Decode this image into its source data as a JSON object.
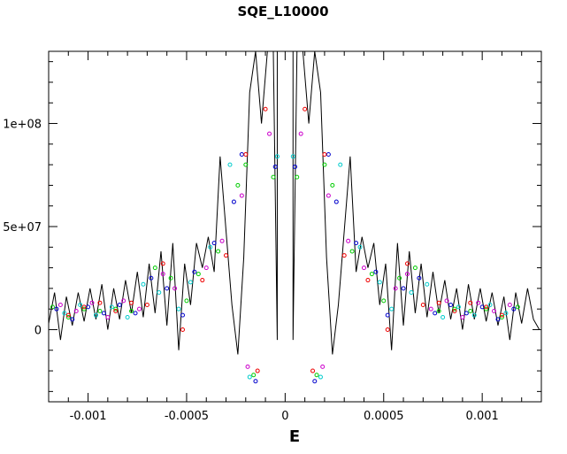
{
  "chart_data": {
    "type": "scatter",
    "title": "SQE_L10000",
    "xlabel": "E",
    "ylabel": "",
    "xlim": [
      -0.0012,
      0.0013
    ],
    "ylim": [
      -35000000,
      135000000
    ],
    "x_ticks": [
      {
        "value": -0.001,
        "label": "-0.001"
      },
      {
        "value": -0.0005,
        "label": "-0.0005"
      },
      {
        "value": 0,
        "label": "0"
      },
      {
        "value": 0.0005,
        "label": "0.0005"
      },
      {
        "value": 0.001,
        "label": "0.001"
      }
    ],
    "y_ticks": [
      {
        "value": 0,
        "label": "0"
      },
      {
        "value": 50000000,
        "label": "5e+07"
      },
      {
        "value": 100000000,
        "label": "1e+08"
      }
    ],
    "line_series": {
      "color": "#000000",
      "x": [
        -0.0012,
        -0.00117,
        -0.00114,
        -0.00111,
        -0.00108,
        -0.00105,
        -0.00102,
        -0.00099,
        -0.00096,
        -0.00093,
        -0.0009,
        -0.00087,
        -0.00084,
        -0.00081,
        -0.00078,
        -0.00075,
        -0.00072,
        -0.00069,
        -0.00066,
        -0.00063,
        -0.0006,
        -0.00057,
        -0.00054,
        -0.00051,
        -0.00048,
        -0.00045,
        -0.00042,
        -0.00039,
        -0.00036,
        -0.00033,
        -0.0003,
        -0.00027,
        -0.00024,
        -0.00021,
        -0.00018,
        -0.00015,
        -0.00012,
        -9e-05,
        -6e-05,
        -4e-05,
        -4e-05,
        -2e-05,
        2e-05,
        4e-05,
        4e-05,
        6e-05,
        9e-05,
        0.00012,
        0.00015,
        0.00018,
        0.00021,
        0.00024,
        0.00027,
        0.0003,
        0.00033,
        0.00036,
        0.00039,
        0.00042,
        0.00045,
        0.00048,
        0.00051,
        0.00054,
        0.00057,
        0.0006,
        0.00063,
        0.00066,
        0.00069,
        0.00072,
        0.00075,
        0.00078,
        0.00081,
        0.00084,
        0.00087,
        0.0009,
        0.00093,
        0.00096,
        0.00099,
        0.00102,
        0.00105,
        0.00108,
        0.00111,
        0.00114,
        0.00117,
        0.0012,
        0.00123,
        0.00126,
        0.00129
      ],
      "y": [
        3000000,
        18000000,
        -5000000,
        16000000,
        2000000,
        18000000,
        4000000,
        20000000,
        5000000,
        22000000,
        0,
        20000000,
        5000000,
        24000000,
        8000000,
        28000000,
        6000000,
        32000000,
        8000000,
        38000000,
        2000000,
        42000000,
        -10000000,
        32000000,
        12000000,
        42000000,
        30000000,
        45000000,
        28000000,
        84000000,
        48000000,
        12000000,
        -12000000,
        35000000,
        115000000,
        135000000,
        100000000,
        135000000,
        135000000,
        -5000000,
        135000000,
        135000000,
        135000000,
        135000000,
        -5000000,
        135000000,
        135000000,
        100000000,
        135000000,
        115000000,
        35000000,
        -12000000,
        12000000,
        48000000,
        84000000,
        28000000,
        45000000,
        30000000,
        42000000,
        12000000,
        32000000,
        -10000000,
        42000000,
        2000000,
        38000000,
        8000000,
        32000000,
        6000000,
        28000000,
        8000000,
        24000000,
        5000000,
        20000000,
        0,
        22000000,
        5000000,
        20000000,
        4000000,
        18000000,
        2000000,
        16000000,
        -5000000,
        18000000,
        3000000,
        20000000,
        5000000,
        0
      ]
    },
    "point_series": [
      {
        "color": "#0000cc",
        "points": [
          [
            -0.00116,
            10000000
          ],
          [
            -0.00108,
            5000000
          ],
          [
            -0.001,
            11000000
          ],
          [
            -0.00092,
            8000000
          ],
          [
            -0.00084,
            12000000
          ],
          [
            -0.00076,
            8000000
          ],
          [
            -0.00068,
            25000000
          ],
          [
            -0.0006,
            20000000
          ],
          [
            -0.00052,
            7000000
          ],
          [
            -0.00046,
            28000000
          ],
          [
            -0.00036,
            42000000
          ],
          [
            -0.00026,
            62000000
          ],
          [
            -0.00022,
            85000000
          ],
          [
            -0.00015,
            -25000000
          ],
          [
            -5e-05,
            79000000
          ],
          [
            5e-05,
            79000000
          ],
          [
            0.00015,
            -25000000
          ],
          [
            0.00022,
            85000000
          ],
          [
            0.00026,
            62000000
          ],
          [
            0.00036,
            42000000
          ],
          [
            0.00046,
            28000000
          ],
          [
            0.00052,
            7000000
          ],
          [
            0.0006,
            20000000
          ],
          [
            0.00068,
            25000000
          ],
          [
            0.00076,
            8000000
          ],
          [
            0.00084,
            12000000
          ],
          [
            0.00092,
            8000000
          ],
          [
            0.001,
            11000000
          ],
          [
            0.00108,
            5000000
          ],
          [
            0.00116,
            10000000
          ]
        ]
      },
      {
        "color": "#00cc00",
        "points": [
          [
            -0.00118,
            11000000
          ],
          [
            -0.0011,
            6000000
          ],
          [
            -0.00102,
            10000000
          ],
          [
            -0.00094,
            9000000
          ],
          [
            -0.00086,
            10000000
          ],
          [
            -0.00078,
            9000000
          ],
          [
            -0.00066,
            30000000
          ],
          [
            -0.00058,
            25000000
          ],
          [
            -0.0005,
            14000000
          ],
          [
            -0.00044,
            27000000
          ],
          [
            -0.00034,
            38000000
          ],
          [
            -0.00024,
            70000000
          ],
          [
            -0.0002,
            80000000
          ],
          [
            -0.00016,
            -22000000
          ],
          [
            -6e-05,
            74000000
          ],
          [
            6e-05,
            74000000
          ],
          [
            0.00016,
            -22000000
          ],
          [
            0.0002,
            80000000
          ],
          [
            0.00024,
            70000000
          ],
          [
            0.00034,
            38000000
          ],
          [
            0.00044,
            27000000
          ],
          [
            0.0005,
            14000000
          ],
          [
            0.00058,
            25000000
          ],
          [
            0.00066,
            30000000
          ],
          [
            0.00078,
            9000000
          ],
          [
            0.00086,
            10000000
          ],
          [
            0.00094,
            9000000
          ],
          [
            0.00102,
            10000000
          ],
          [
            0.0011,
            6000000
          ],
          [
            0.00118,
            11000000
          ]
        ]
      },
      {
        "color": "#00cccc",
        "points": [
          [
            -0.00112,
            8000000
          ],
          [
            -0.00104,
            12000000
          ],
          [
            -0.00096,
            7000000
          ],
          [
            -0.00088,
            11000000
          ],
          [
            -0.0008,
            6000000
          ],
          [
            -0.00072,
            22000000
          ],
          [
            -0.00064,
            18000000
          ],
          [
            -0.00054,
            10000000
          ],
          [
            -0.00048,
            23000000
          ],
          [
            -0.00038,
            40000000
          ],
          [
            -0.00028,
            80000000
          ],
          [
            -0.00018,
            -23000000
          ],
          [
            -4e-05,
            84000000
          ],
          [
            4e-05,
            84000000
          ],
          [
            0.00018,
            -23000000
          ],
          [
            0.00028,
            80000000
          ],
          [
            0.00038,
            40000000
          ],
          [
            0.00048,
            23000000
          ],
          [
            0.00054,
            10000000
          ],
          [
            0.00064,
            18000000
          ],
          [
            0.00072,
            22000000
          ],
          [
            0.0008,
            6000000
          ],
          [
            0.00088,
            11000000
          ],
          [
            0.00096,
            7000000
          ],
          [
            0.00104,
            12000000
          ],
          [
            0.00112,
            8000000
          ]
        ]
      },
      {
        "color": "#cc00cc",
        "points": [
          [
            -0.00114,
            12000000
          ],
          [
            -0.00106,
            9000000
          ],
          [
            -0.00098,
            13000000
          ],
          [
            -0.0009,
            6000000
          ],
          [
            -0.00082,
            14000000
          ],
          [
            -0.00074,
            10000000
          ],
          [
            -0.00062,
            27000000
          ],
          [
            -0.00056,
            20000000
          ],
          [
            -0.0004,
            30000000
          ],
          [
            -0.00032,
            43000000
          ],
          [
            -0.00022,
            65000000
          ],
          [
            -0.00019,
            -18000000
          ],
          [
            -8e-05,
            95000000
          ],
          [
            8e-05,
            95000000
          ],
          [
            0.00019,
            -18000000
          ],
          [
            0.00022,
            65000000
          ],
          [
            0.00032,
            43000000
          ],
          [
            0.0004,
            30000000
          ],
          [
            0.00056,
            20000000
          ],
          [
            0.00062,
            27000000
          ],
          [
            0.00074,
            10000000
          ],
          [
            0.00082,
            14000000
          ],
          [
            0.0009,
            6000000
          ],
          [
            0.00098,
            13000000
          ],
          [
            0.00106,
            9000000
          ],
          [
            0.00114,
            12000000
          ]
        ]
      },
      {
        "color": "#ee0000",
        "points": [
          [
            -0.0011,
            7000000
          ],
          [
            -0.00102,
            11000000
          ],
          [
            -0.00094,
            13000000
          ],
          [
            -0.00086,
            9000000
          ],
          [
            -0.00078,
            13000000
          ],
          [
            -0.0007,
            12000000
          ],
          [
            -0.00062,
            32000000
          ],
          [
            -0.00052,
            0
          ],
          [
            -0.00042,
            24000000
          ],
          [
            -0.0003,
            36000000
          ],
          [
            -0.0002,
            85000000
          ],
          [
            -0.00014,
            -20000000
          ],
          [
            -0.0001,
            107000000
          ],
          [
            0.0001,
            107000000
          ],
          [
            0.00014,
            -20000000
          ],
          [
            0.0002,
            85000000
          ],
          [
            0.0003,
            36000000
          ],
          [
            0.00042,
            24000000
          ],
          [
            0.00052,
            0
          ],
          [
            0.00062,
            32000000
          ],
          [
            0.0007,
            12000000
          ],
          [
            0.00078,
            13000000
          ],
          [
            0.00086,
            9000000
          ],
          [
            0.00094,
            13000000
          ],
          [
            0.00102,
            11000000
          ],
          [
            0.0011,
            7000000
          ]
        ]
      }
    ],
    "grid": false,
    "legend": "none"
  }
}
